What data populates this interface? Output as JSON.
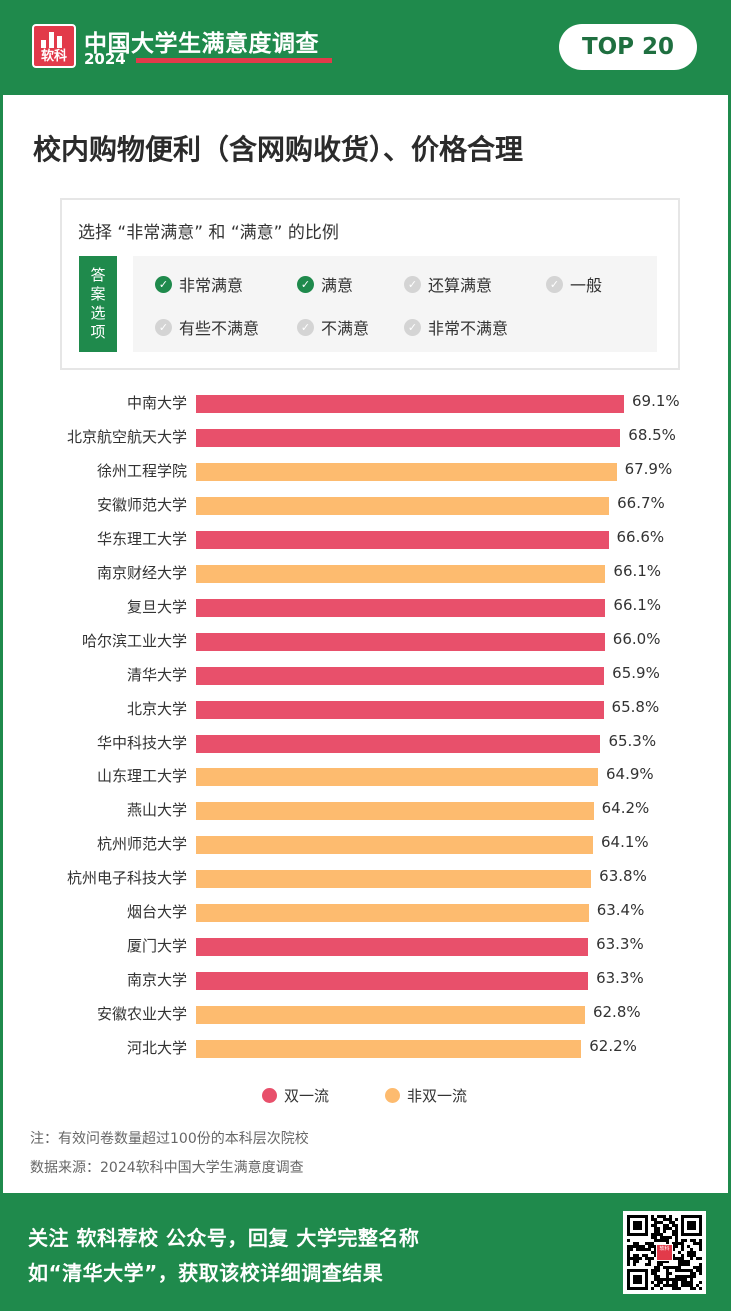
{
  "header": {
    "logo_text": "软科",
    "survey_title": "中国大学生满意度调查",
    "survey_year": "2024",
    "badge": "TOP 20"
  },
  "title": "校内购物便利（含网购收货）、价格合理",
  "legend_box": {
    "question": "选择 “非常满意” 和 “满意” 的比例",
    "answer_label": "答案选项",
    "options": [
      {
        "label": "非常满意",
        "selected": true
      },
      {
        "label": "满意",
        "selected": true
      },
      {
        "label": "还算满意",
        "selected": false
      },
      {
        "label": "一般",
        "selected": false
      },
      {
        "label": "有些不满意",
        "selected": false
      },
      {
        "label": "不满意",
        "selected": false
      },
      {
        "label": "非常不满意",
        "selected": false
      }
    ]
  },
  "chart_data": {
    "type": "bar",
    "orientation": "horizontal",
    "categories": [
      "中南大学",
      "北京航空航天大学",
      "徐州工程学院",
      "安徽师范大学",
      "华东理工大学",
      "南京财经大学",
      "复旦大学",
      "哈尔滨工业大学",
      "清华大学",
      "北京大学",
      "华中科技大学",
      "山东理工大学",
      "燕山大学",
      "杭州师范大学",
      "杭州电子科技大学",
      "烟台大学",
      "厦门大学",
      "南京大学",
      "安徽农业大学",
      "河北大学"
    ],
    "values": [
      69.1,
      68.5,
      67.9,
      66.7,
      66.6,
      66.1,
      66.1,
      66.0,
      65.9,
      65.8,
      65.3,
      64.9,
      64.2,
      64.1,
      63.8,
      63.4,
      63.3,
      63.3,
      62.8,
      62.2
    ],
    "value_labels": [
      "69.1%",
      "68.5%",
      "67.9%",
      "66.7%",
      "66.6%",
      "66.1%",
      "66.1%",
      "66.0%",
      "65.9%",
      "65.8%",
      "65.3%",
      "64.9%",
      "64.2%",
      "64.1%",
      "63.8%",
      "63.4%",
      "63.3%",
      "63.3%",
      "62.8%",
      "62.2%"
    ],
    "groups": [
      "双一流",
      "双一流",
      "非双一流",
      "非双一流",
      "双一流",
      "非双一流",
      "双一流",
      "双一流",
      "双一流",
      "双一流",
      "双一流",
      "非双一流",
      "非双一流",
      "非双一流",
      "非双一流",
      "非双一流",
      "双一流",
      "双一流",
      "非双一流",
      "非双一流"
    ],
    "legend": [
      {
        "name": "双一流",
        "color": "#e8506b"
      },
      {
        "name": "非双一流",
        "color": "#fdbb6f"
      }
    ],
    "xlim": [
      0,
      69.1
    ]
  },
  "notes": {
    "note1": "注：有效问卷数量超过100份的本科层次院校",
    "note2": "数据来源：2024软科中国大学生满意度调查"
  },
  "footer": {
    "line1": "关注 软科荐校 公众号，回复 大学完整名称",
    "line2": "如“清华大学”，获取该校详细调查结果",
    "qr_center_text": "软科"
  },
  "colors": {
    "brand_green": "#1f8a4c",
    "brand_red": "#e23a4a"
  }
}
